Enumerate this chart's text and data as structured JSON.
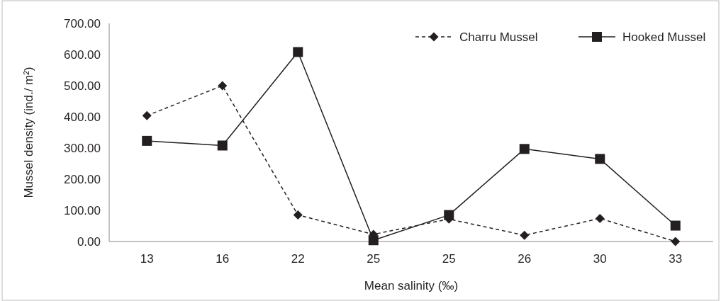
{
  "chart_data": {
    "type": "line",
    "xlabel": "Mean salinity (‰)",
    "ylabel": "Mussel density (ind./ m²)",
    "categories": [
      "13",
      "16",
      "22",
      "25",
      "25",
      "26",
      "30",
      "33"
    ],
    "ylim": [
      0,
      700
    ],
    "yticks": [
      {
        "value": 0,
        "label": "0.00"
      },
      {
        "value": 100,
        "label": "100.00"
      },
      {
        "value": 200,
        "label": "200.00"
      },
      {
        "value": 300,
        "label": "300.00"
      },
      {
        "value": 400,
        "label": "400.00"
      },
      {
        "value": 500,
        "label": "500.00"
      },
      {
        "value": 600,
        "label": "600.00"
      },
      {
        "value": 700,
        "label": "700.00"
      }
    ],
    "grid": false,
    "legend": "top right",
    "series": [
      {
        "name": "Charru Mussel",
        "color": "#231f20",
        "marker": "diamond",
        "line_style": "dashed",
        "values": [
          404,
          500,
          85,
          23,
          72,
          20,
          74,
          0
        ]
      },
      {
        "name": "Hooked Mussel",
        "color": "#231f20",
        "marker": "square",
        "line_style": "solid",
        "values": [
          323,
          308,
          608,
          4,
          85,
          297,
          265,
          51
        ]
      }
    ]
  }
}
